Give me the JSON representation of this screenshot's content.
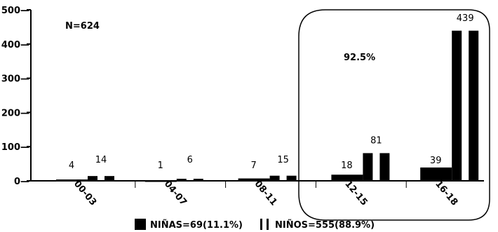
{
  "chart_data": {
    "type": "bar",
    "categories": [
      "00-03",
      "04-07",
      "08-11",
      "12-15",
      "16-18"
    ],
    "series": [
      {
        "name": "NIÑAS=69(11.1%)",
        "values": [
          4,
          1,
          7,
          18,
          39
        ],
        "color": "#000000"
      },
      {
        "name": "NIÑOS=555(88.9%)",
        "values": [
          14,
          6,
          15,
          81,
          439
        ],
        "color": "#000000"
      }
    ],
    "yticks": [
      0,
      100,
      200,
      300,
      400,
      500
    ],
    "ylim": [
      0,
      500
    ],
    "annotations": {
      "n_label": "N=624",
      "callout_label": "92.5%"
    },
    "grid": false,
    "legend_position": "bottom"
  }
}
